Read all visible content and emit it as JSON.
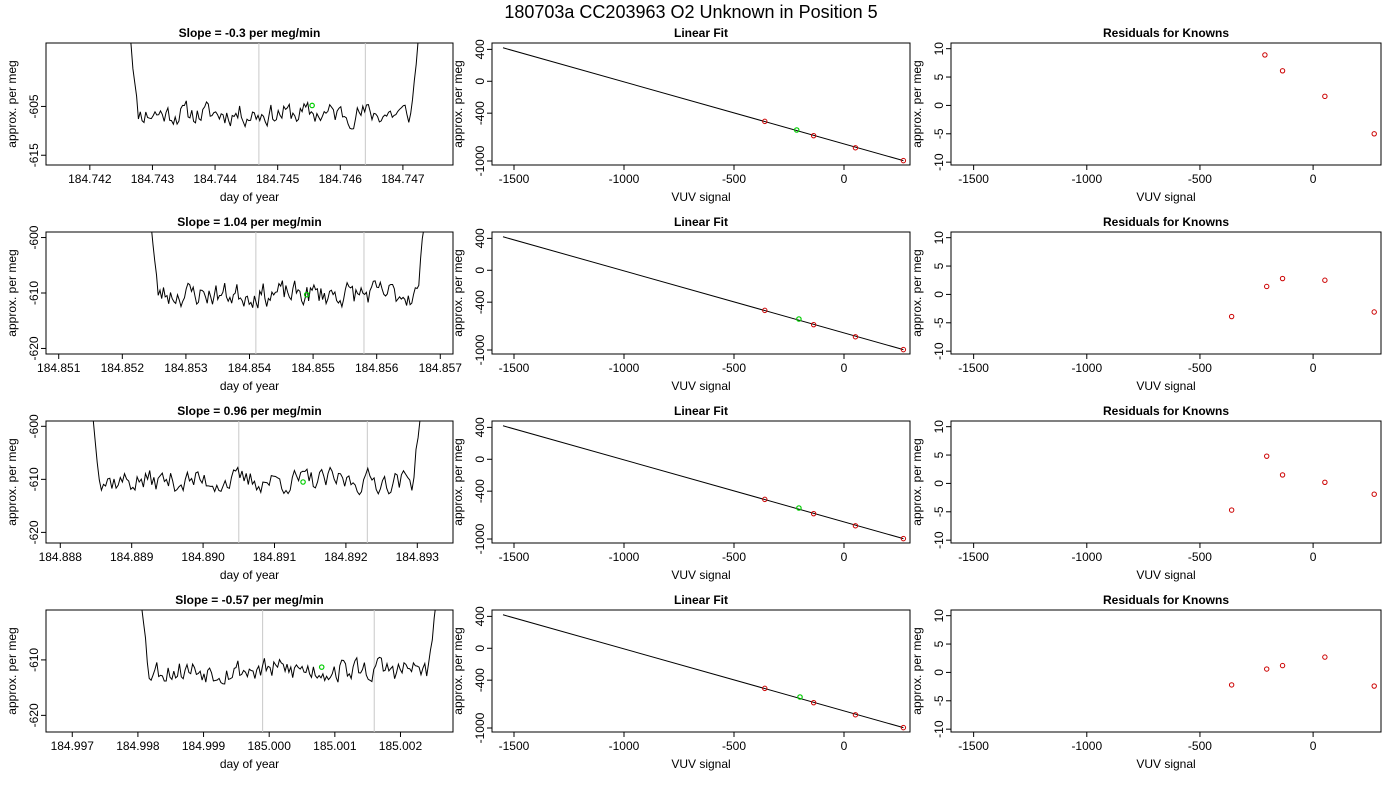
{
  "title": "180703a      CC203963   O2 Unknown in Position  5",
  "colors": {
    "trace": "#000000",
    "known_point": "#cc0000",
    "unknown_point": "#00cc00",
    "marker_line": "#c8c8c8"
  },
  "chart_data": [
    {
      "type": "line",
      "row": 1,
      "title": "Slope =  -0.3  per meg/min",
      "xlabel": "day of year",
      "ylabel": "approx. per meg",
      "xlim": [
        184.7413,
        184.7478
      ],
      "ylim": [
        -617,
        -592
      ],
      "xticks": [
        184.742,
        184.743,
        184.744,
        184.745,
        184.746,
        184.747
      ],
      "xtick_labels": [
        "184.742",
        "184.743",
        "184.744",
        "184.745",
        "184.746",
        "184.747"
      ],
      "yticks": [
        -605,
        -615
      ],
      "ytick_labels": [
        "-605",
        "-615"
      ],
      "trace_start": 184.7426,
      "trace_end": 184.7473,
      "trace_mean": -606.5,
      "trace_noise": 2.3,
      "trace_seed": 11,
      "markers": [
        184.7447,
        184.7464
      ],
      "unknown_point": {
        "x": 184.74555,
        "y": -604.8
      }
    },
    {
      "type": "scatter",
      "row": 1,
      "title": "Linear Fit",
      "xlabel": "VUV signal",
      "ylabel": "approx. per meg",
      "xlim": [
        -1600,
        300
      ],
      "ylim": [
        -1050,
        480
      ],
      "xticks": [
        -1500,
        -1000,
        -500,
        0
      ],
      "xtick_labels": [
        "-1500",
        "-1000",
        "-500",
        "0"
      ],
      "yticks": [
        400,
        0,
        -400,
        -1000
      ],
      "ytick_labels": [
        "400",
        "0",
        "-400",
        "-1000"
      ],
      "fit_line": {
        "x": [
          -1550,
          270
        ],
        "y": [
          420,
          -995
        ]
      },
      "knowns": [
        {
          "x": -360,
          "y": -503
        },
        {
          "x": -138,
          "y": -682
        },
        {
          "x": 52,
          "y": -834
        },
        {
          "x": 270,
          "y": -995
        }
      ],
      "unknown": {
        "x": -215,
        "y": -611
      }
    },
    {
      "type": "scatter",
      "row": 1,
      "title": "Residuals for Knowns",
      "xlabel": "VUV signal",
      "ylabel": "approx. per meg",
      "xlim": [
        -1600,
        300
      ],
      "ylim": [
        -10.5,
        11
      ],
      "xticks": [
        -1500,
        -1000,
        -500,
        0
      ],
      "xtick_labels": [
        "-1500",
        "-1000",
        "-500",
        "0"
      ],
      "yticks": [
        10,
        5,
        0,
        -5,
        -10
      ],
      "ytick_labels": [
        "10",
        "5",
        "0",
        "-5",
        "-10"
      ],
      "residuals": [
        {
          "x": -213,
          "y": 8.9
        },
        {
          "x": -135,
          "y": 6.1
        },
        {
          "x": 52,
          "y": 1.6
        },
        {
          "x": 270,
          "y": -5.0
        }
      ]
    },
    {
      "type": "line",
      "row": 2,
      "title": "Slope =  1.04  per meg/min",
      "xlabel": "day of year",
      "ylabel": "approx. per meg",
      "xlim": [
        184.8508,
        184.8572
      ],
      "ylim": [
        -621,
        -599
      ],
      "xticks": [
        184.851,
        184.852,
        184.853,
        184.854,
        184.855,
        184.856,
        184.857
      ],
      "xtick_labels": [
        "184.851",
        "184.852",
        "184.853",
        "184.854",
        "184.855",
        "184.856",
        "184.857"
      ],
      "yticks": [
        -600,
        -610,
        -620
      ],
      "ytick_labels": [
        "-600",
        "-610",
        "-620"
      ],
      "trace_start": 184.8524,
      "trace_end": 184.8568,
      "trace_mean": -610.2,
      "trace_noise": 2.2,
      "trace_seed": 23,
      "markers": [
        184.8541,
        184.8558
      ],
      "unknown_point": {
        "x": 184.8549,
        "y": -610.3
      }
    },
    {
      "type": "scatter",
      "row": 2,
      "title": "Linear Fit",
      "xlabel": "VUV signal",
      "ylabel": "approx. per meg",
      "xlim": [
        -1600,
        300
      ],
      "ylim": [
        -1050,
        480
      ],
      "xticks": [
        -1500,
        -1000,
        -500,
        0
      ],
      "xtick_labels": [
        "-1500",
        "-1000",
        "-500",
        "0"
      ],
      "yticks": [
        400,
        0,
        -400,
        -1000
      ],
      "ytick_labels": [
        "400",
        "0",
        "-400",
        "-1000"
      ],
      "fit_line": {
        "x": [
          -1550,
          270
        ],
        "y": [
          420,
          -995
        ]
      },
      "knowns": [
        {
          "x": -360,
          "y": -503
        },
        {
          "x": -138,
          "y": -682
        },
        {
          "x": 52,
          "y": -834
        },
        {
          "x": 270,
          "y": -995
        }
      ],
      "unknown": {
        "x": -205,
        "y": -611
      }
    },
    {
      "type": "scatter",
      "row": 2,
      "title": "Residuals for Knowns",
      "xlabel": "VUV signal",
      "ylabel": "approx. per meg",
      "xlim": [
        -1600,
        300
      ],
      "ylim": [
        -10.5,
        11
      ],
      "xticks": [
        -1500,
        -1000,
        -500,
        0
      ],
      "xtick_labels": [
        "-1500",
        "-1000",
        "-500",
        "0"
      ],
      "yticks": [
        10,
        5,
        0,
        -5,
        -10
      ],
      "ytick_labels": [
        "10",
        "5",
        "0",
        "-5",
        "-10"
      ],
      "residuals": [
        {
          "x": -360,
          "y": -3.9
        },
        {
          "x": -205,
          "y": 1.4
        },
        {
          "x": -135,
          "y": 2.8
        },
        {
          "x": 52,
          "y": 2.5
        },
        {
          "x": 270,
          "y": -3.1
        }
      ]
    },
    {
      "type": "line",
      "row": 3,
      "title": "Slope =  0.96  per meg/min",
      "xlabel": "day of year",
      "ylabel": "approx. per meg",
      "xlim": [
        184.8878,
        184.8935
      ],
      "ylim": [
        -622,
        -599
      ],
      "xticks": [
        184.888,
        184.889,
        184.89,
        184.891,
        184.892,
        184.893
      ],
      "xtick_labels": [
        "184.888",
        "184.889",
        "184.890",
        "184.891",
        "184.892",
        "184.893"
      ],
      "yticks": [
        -600,
        -610,
        -620
      ],
      "ytick_labels": [
        "-600",
        "-610",
        "-620"
      ],
      "trace_start": 184.8884,
      "trace_end": 184.8931,
      "trace_mean": -610.3,
      "trace_noise": 2.2,
      "trace_seed": 37,
      "markers": [
        184.8905,
        184.8923
      ],
      "unknown_point": {
        "x": 184.8914,
        "y": -610.5
      }
    },
    {
      "type": "scatter",
      "row": 3,
      "title": "Linear Fit",
      "xlabel": "VUV signal",
      "ylabel": "approx. per meg",
      "xlim": [
        -1600,
        300
      ],
      "ylim": [
        -1050,
        480
      ],
      "xticks": [
        -1500,
        -1000,
        -500,
        0
      ],
      "xtick_labels": [
        "-1500",
        "-1000",
        "-500",
        "0"
      ],
      "yticks": [
        400,
        0,
        -400,
        -1000
      ],
      "ytick_labels": [
        "400",
        "0",
        "-400",
        "-1000"
      ],
      "fit_line": {
        "x": [
          -1550,
          270
        ],
        "y": [
          420,
          -995
        ]
      },
      "knowns": [
        {
          "x": -360,
          "y": -503
        },
        {
          "x": -138,
          "y": -682
        },
        {
          "x": 52,
          "y": -834
        },
        {
          "x": 270,
          "y": -995
        }
      ],
      "unknown": {
        "x": -205,
        "y": -611
      }
    },
    {
      "type": "scatter",
      "row": 3,
      "title": "Residuals for Knowns",
      "xlabel": "VUV signal",
      "ylabel": "approx. per meg",
      "xlim": [
        -1600,
        300
      ],
      "ylim": [
        -10.5,
        11
      ],
      "xticks": [
        -1500,
        -1000,
        -500,
        0
      ],
      "xtick_labels": [
        "-1500",
        "-1000",
        "-500",
        "0"
      ],
      "yticks": [
        10,
        5,
        0,
        -5,
        -10
      ],
      "ytick_labels": [
        "10",
        "5",
        "0",
        "-5",
        "-10"
      ],
      "residuals": [
        {
          "x": -360,
          "y": -4.7
        },
        {
          "x": -205,
          "y": 4.8
        },
        {
          "x": -135,
          "y": 1.5
        },
        {
          "x": 52,
          "y": 0.2
        },
        {
          "x": 270,
          "y": -1.9
        }
      ]
    },
    {
      "type": "line",
      "row": 4,
      "title": "Slope =  -0.57  per meg/min",
      "xlabel": "day of year",
      "ylabel": "approx. per meg",
      "xlim": [
        184.9966,
        185.0028
      ],
      "ylim": [
        -623,
        -601
      ],
      "xticks": [
        184.997,
        184.998,
        184.999,
        185.0,
        185.001,
        185.002
      ],
      "xtick_labels": [
        "184.997",
        "184.998",
        "184.999",
        "185.000",
        "185.001",
        "185.002"
      ],
      "yticks": [
        -610,
        -620
      ],
      "ytick_labels": [
        "-610",
        "-620"
      ],
      "trace_start": 184.998,
      "trace_end": 185.0026,
      "trace_mean": -611.8,
      "trace_noise": 2.2,
      "trace_seed": 53,
      "markers": [
        184.9999,
        185.0016
      ],
      "unknown_point": {
        "x": 185.0008,
        "y": -611.3
      }
    },
    {
      "type": "scatter",
      "row": 4,
      "title": "Linear Fit",
      "xlabel": "VUV signal",
      "ylabel": "approx. per meg",
      "xlim": [
        -1600,
        300
      ],
      "ylim": [
        -1050,
        480
      ],
      "xticks": [
        -1500,
        -1000,
        -500,
        0
      ],
      "xtick_labels": [
        "-1500",
        "-1000",
        "-500",
        "0"
      ],
      "yticks": [
        400,
        0,
        -400,
        -1000
      ],
      "ytick_labels": [
        "400",
        "0",
        "-400",
        "-1000"
      ],
      "fit_line": {
        "x": [
          -1550,
          270
        ],
        "y": [
          420,
          -995
        ]
      },
      "knowns": [
        {
          "x": -360,
          "y": -503
        },
        {
          "x": -138,
          "y": -682
        },
        {
          "x": 52,
          "y": -834
        },
        {
          "x": 270,
          "y": -995
        }
      ],
      "unknown": {
        "x": -200,
        "y": -611
      }
    },
    {
      "type": "scatter",
      "row": 4,
      "title": "Residuals for Knowns",
      "xlabel": "VUV signal",
      "ylabel": "approx. per meg",
      "xlim": [
        -1600,
        300
      ],
      "ylim": [
        -10.5,
        11
      ],
      "xticks": [
        -1500,
        -1000,
        -500,
        0
      ],
      "xtick_labels": [
        "-1500",
        "-1000",
        "-500",
        "0"
      ],
      "yticks": [
        10,
        5,
        0,
        -5,
        -10
      ],
      "ytick_labels": [
        "10",
        "5",
        "0",
        "-5",
        "-10"
      ],
      "residuals": [
        {
          "x": -360,
          "y": -2.2
        },
        {
          "x": -205,
          "y": 0.6
        },
        {
          "x": -135,
          "y": 1.2
        },
        {
          "x": 52,
          "y": 2.7
        },
        {
          "x": 270,
          "y": -2.4
        }
      ]
    }
  ]
}
